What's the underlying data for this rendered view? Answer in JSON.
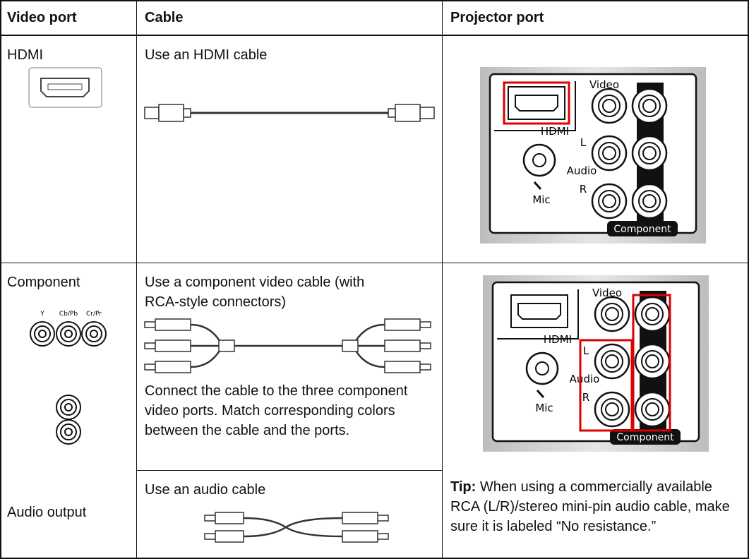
{
  "table": {
    "header": [
      "Video port",
      "Cable",
      "Projector port"
    ],
    "rows": [
      {
        "video_port": "HDMI",
        "cable": "Use an HDMI cable"
      },
      {
        "video_port": "Component",
        "port_labels": [
          "Y",
          "Cb/Pb",
          "Cr/Pr"
        ],
        "cable": "Use a component video cable (with RCA-style connectors)",
        "note": "Connect the cable to the three component video ports. Match corresponding colors between the cable and the ports."
      },
      {
        "video_port": "Audio output",
        "cable": "Use an audio cable"
      }
    ],
    "panel_labels": {
      "video": "Video",
      "hdmi": "HDMI",
      "l": "L",
      "audio": "Audio",
      "r": "R",
      "mic": "Mic",
      "component": "Component"
    },
    "tip": {
      "label": "Tip:",
      "text": "When using a commercially available RCA (L/R)/stereo mini-pin audio cable, make sure it is labeled “No resistance.”"
    }
  }
}
